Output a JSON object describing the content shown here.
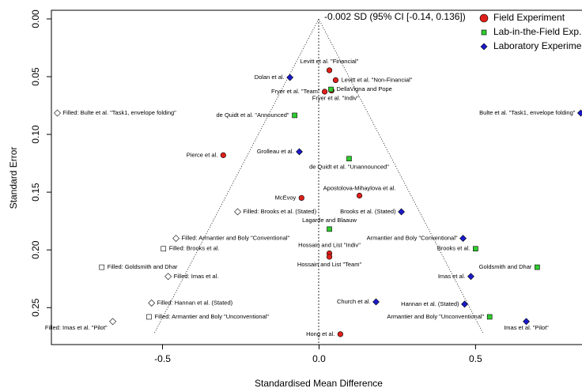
{
  "chart_data": {
    "type": "scatter",
    "annotation": "-0.002 SD (95% CI [-0.14, 0.136])",
    "x_label": "Standardised Mean Difference",
    "y_label": "Standard Error",
    "xlim": [
      -0.855,
      0.84
    ],
    "ylim": [
      -0.0075,
      0.282
    ],
    "y_inverted": true,
    "xticks": [
      -0.5,
      {
        "value": 0,
        "label": "0.0"
      },
      0.5
    ],
    "yticks": [
      {
        "value": 0,
        "label": "0.00"
      },
      {
        "value": 0.05,
        "label": "0.05"
      },
      {
        "value": 0.1,
        "label": "0.10"
      },
      {
        "value": 0.15,
        "label": "0.15"
      },
      {
        "value": 0.2,
        "label": "0.20"
      },
      {
        "value": 0.25,
        "label": "0.25"
      }
    ],
    "legend": "top-right",
    "series": [
      {
        "name": "Field Experiment",
        "color": "#e0201b",
        "marker": "circle",
        "x": [
          0.033,
          0.053,
          0.018,
          0.04,
          -0.306,
          -0.056,
          0.129,
          0.033,
          0.033,
          0.068
        ],
        "values": [
          0.0445,
          0.053,
          0.063,
          0.062,
          0.118,
          0.155,
          0.153,
          0.203,
          0.206,
          0.273
        ],
        "labels": [
          "Levitt et al. \"Financial\"",
          "Levitt et al. \"Non-Financial\"",
          "Fryer et al. \"Team\"",
          "Fryer et al. \"Indiv\"",
          "Pierce et al.",
          "McEvoy",
          "Apostolova-Mihaylova et al.",
          "Hossain and List \"Indiv\"",
          "Hossain and List \"Team\"",
          "Hong et al."
        ]
      },
      {
        "name": "Lab-in-the-Field Exp.",
        "color": "#2ecc2e",
        "marker": "square",
        "x": [
          0.038,
          -0.078,
          0.096,
          0.033,
          0.5,
          0.697,
          0.545
        ],
        "values": [
          0.061,
          0.0835,
          0.121,
          0.182,
          0.199,
          0.215,
          0.258
        ],
        "labels": [
          "DellaVigna and Pope",
          "de Quidt et al. \"Announced\"",
          "de Quidt et al. \"Unannounced\"",
          "Lagarde and Blaauw",
          "Brooks et al.",
          "Goldsmith and Dhar",
          "Armantier and Boly \"Unconventional\""
        ]
      },
      {
        "name": "Laboratory Experiment",
        "color": "#1a1acc",
        "marker": "diamond",
        "x": [
          -0.093,
          0.836,
          -0.063,
          0.263,
          0.46,
          0.485,
          0.182,
          0.465,
          0.662
        ],
        "values": [
          0.0507,
          0.0815,
          0.115,
          0.167,
          0.19,
          0.223,
          0.245,
          0.247,
          0.262
        ],
        "labels": [
          "Dolan et al.",
          "Bulte et al. \"Task1, envelope folding\"",
          "Grolleau et al.",
          "Brooks et al. (Stated)",
          "Armantier and Boly \"Conventional\"",
          "Imas et al.",
          "Church et al.",
          "Hannan et al. (Stated)",
          "Imas et al. \"Pilot\""
        ]
      }
    ],
    "filled": {
      "color": "#ffffff",
      "x": [
        -0.836,
        -0.26,
        -0.457,
        -0.497,
        -0.694,
        -0.482,
        -0.535,
        -0.543,
        -0.659
      ],
      "values": [
        0.0815,
        0.167,
        0.19,
        0.199,
        0.215,
        0.223,
        0.246,
        0.258,
        0.262
      ],
      "markers": [
        "diamond",
        "diamond",
        "diamond",
        "square",
        "square",
        "diamond",
        "diamond",
        "square",
        "diamond"
      ],
      "labels": [
        "Filled: Bulte et al. \"Task1, envelope folding\"",
        "Filled: Brooks et al. (Stated)",
        "Filled: Armantier and Boly \"Conventional\"",
        "Filled: Brooks et al.",
        "Filled: Goldsmith and Dhar",
        "Filled: Imas et al.",
        "Filled: Hannan et al. (Stated)",
        "Filled: Armantier and Boly \"Unconventional\"",
        "Filled: Imas et al. \"Pilot\""
      ]
    }
  }
}
